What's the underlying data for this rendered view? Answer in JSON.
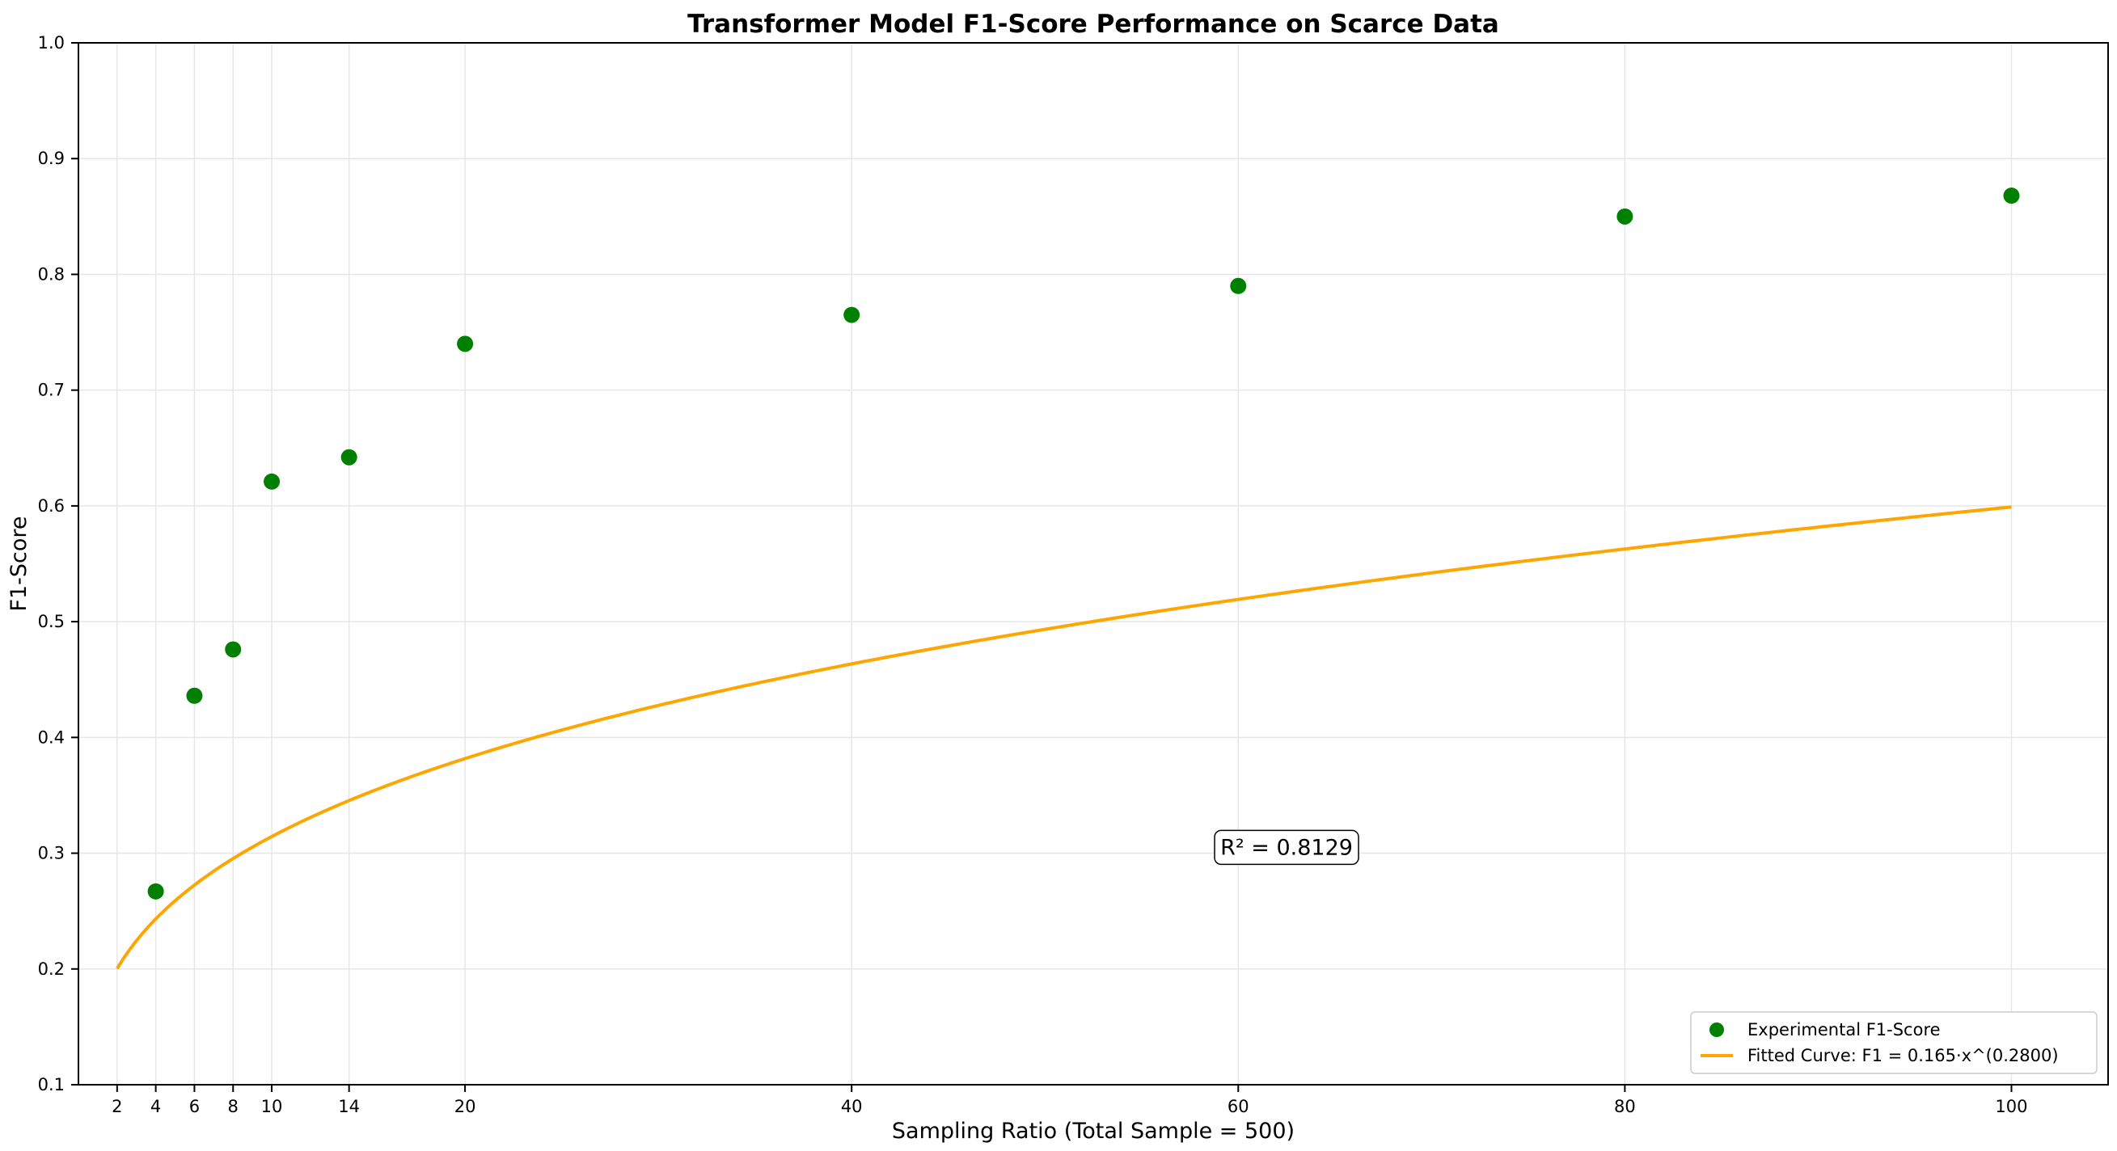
{
  "chart_data": {
    "type": "scatter",
    "title": "Transformer Model F1-Score Performance on Scarce Data",
    "xlabel": "Sampling Ratio (Total Sample = 500)",
    "ylabel": "F1-Score",
    "xlim": [
      0,
      105
    ],
    "ylim": [
      0.1,
      1.0
    ],
    "xticks": [
      2,
      4,
      6,
      8,
      10,
      14,
      20,
      40,
      60,
      80,
      100
    ],
    "yticks": [
      0.1,
      0.2,
      0.3,
      0.4,
      0.5,
      0.6,
      0.7,
      0.8,
      0.9,
      1.0
    ],
    "grid": true,
    "legend_position": "lower-right",
    "series": [
      {
        "name": "Experimental F1-Score",
        "kind": "scatter",
        "color": "#008000",
        "x": [
          4,
          6,
          8,
          10,
          14,
          20,
          40,
          60,
          80,
          100
        ],
        "y": [
          0.267,
          0.436,
          0.476,
          0.621,
          0.642,
          0.74,
          0.765,
          0.79,
          0.85,
          0.868
        ]
      },
      {
        "name": "Fitted Curve: F1 = 0.165·x^(0.2800)",
        "kind": "line",
        "color": "#FFA500",
        "function": {
          "a": 0.165,
          "b": 0.28
        },
        "x_range": [
          2,
          100
        ]
      }
    ],
    "annotation": {
      "text": "R² = 0.8129",
      "x": 62.5,
      "y": 0.305
    }
  }
}
